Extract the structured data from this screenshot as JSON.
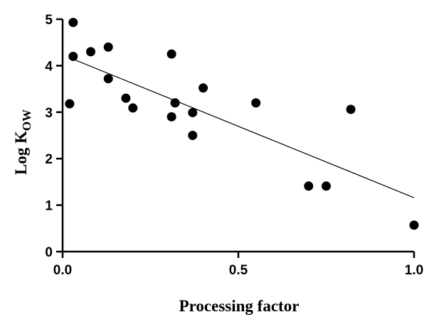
{
  "chart_data": {
    "type": "scatter",
    "xlabel": "Processing factor",
    "ylabel": "Log K",
    "ylabel_subscript": "OW",
    "xlim": [
      0.0,
      1.0
    ],
    "ylim": [
      0,
      5
    ],
    "x_ticks": [
      0.0,
      0.5,
      1.0
    ],
    "x_tick_labels": [
      "0.0",
      "0.5",
      "1.0"
    ],
    "y_ticks": [
      0,
      1,
      2,
      3,
      4,
      5
    ],
    "y_tick_labels": [
      "0",
      "1",
      "2",
      "3",
      "4",
      "5"
    ],
    "grid": false,
    "points": [
      {
        "x": 0.02,
        "y": 3.18
      },
      {
        "x": 0.03,
        "y": 4.93
      },
      {
        "x": 0.03,
        "y": 4.2
      },
      {
        "x": 0.08,
        "y": 4.3
      },
      {
        "x": 0.13,
        "y": 4.4
      },
      {
        "x": 0.13,
        "y": 3.72
      },
      {
        "x": 0.18,
        "y": 3.3
      },
      {
        "x": 0.2,
        "y": 3.09
      },
      {
        "x": 0.31,
        "y": 4.25
      },
      {
        "x": 0.31,
        "y": 2.9
      },
      {
        "x": 0.32,
        "y": 3.2
      },
      {
        "x": 0.37,
        "y": 2.99
      },
      {
        "x": 0.37,
        "y": 2.5
      },
      {
        "x": 0.4,
        "y": 3.52
      },
      {
        "x": 0.55,
        "y": 3.2
      },
      {
        "x": 0.7,
        "y": 1.41
      },
      {
        "x": 0.75,
        "y": 1.41
      },
      {
        "x": 0.82,
        "y": 3.06
      },
      {
        "x": 1.0,
        "y": 0.57
      }
    ],
    "trendline": {
      "x": [
        0.02,
        1.0
      ],
      "y": [
        4.17,
        1.16
      ]
    }
  }
}
